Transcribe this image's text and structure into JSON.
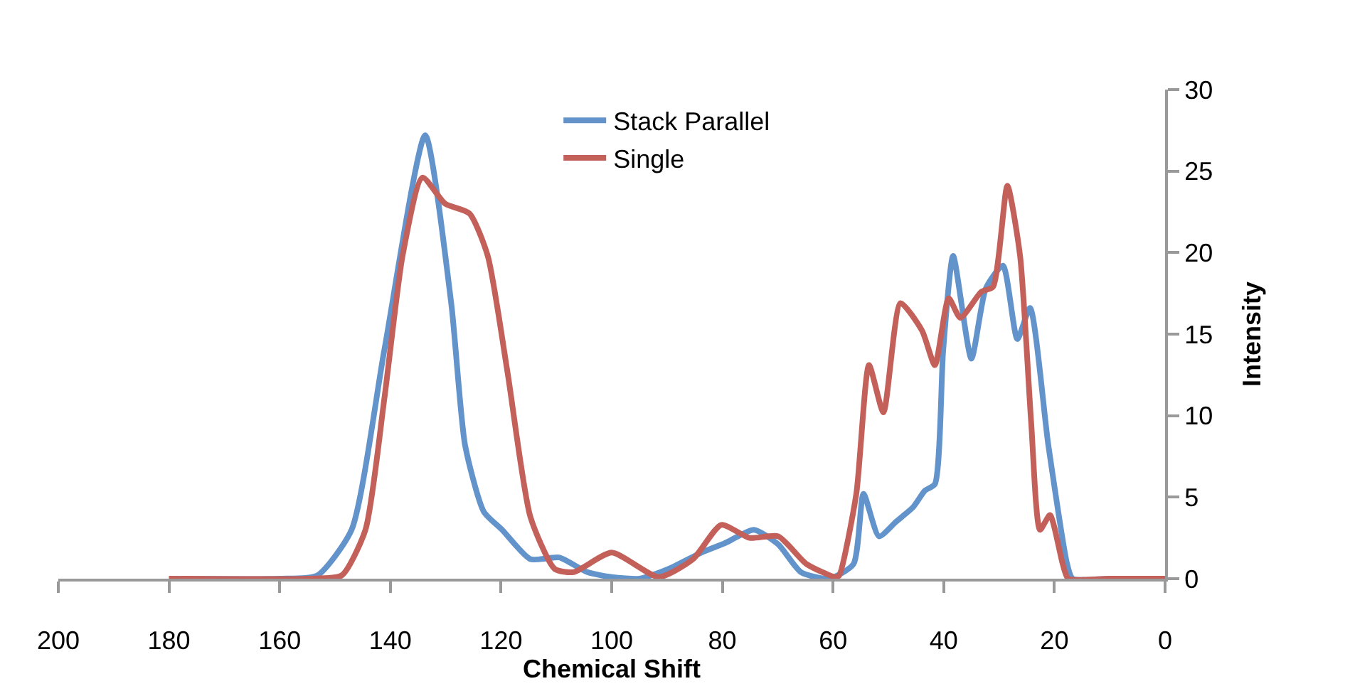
{
  "chart_data": {
    "type": "line",
    "xlabel": "Chemical Shift",
    "ylabel": "Intensity",
    "xlim": [
      200,
      0
    ],
    "xticks": [
      200,
      180,
      160,
      140,
      120,
      100,
      80,
      60,
      40,
      20,
      0
    ],
    "ylim": [
      0,
      30
    ],
    "yticks": [
      0,
      5,
      10,
      15,
      20,
      25,
      30
    ],
    "grid": false,
    "legend": "top",
    "marker": "none",
    "line_style": "solid",
    "series": [
      {
        "name": "Stack Parallel",
        "color": "#6393cb",
        "x": [
          180,
          160,
          153.2,
          147,
          141.1,
          133.7,
          129,
          126.5,
          123.1,
          119.8,
          114.7,
          109.5,
          104.4,
          100,
          95,
          89.7,
          83.8,
          79.4,
          74.3,
          69.9,
          65.8,
          60.7,
          56.3,
          54.5,
          51.7,
          48.6,
          45.5,
          43.4,
          41.6,
          40.1,
          38.3,
          35,
          32.4,
          29.3,
          26.7,
          24.4,
          21.1,
          17.7,
          16.7,
          10,
          0
        ],
        "values": [
          0,
          0,
          0.2,
          3,
          14,
          27.2,
          16.9,
          8.2,
          4.1,
          3,
          1.2,
          1.3,
          0.4,
          0.1,
          0,
          0.6,
          1.6,
          2.2,
          3,
          2.1,
          0.4,
          0,
          0.9,
          5.2,
          2.6,
          3.5,
          4.4,
          5.4,
          5.8,
          14,
          19.8,
          13.5,
          17.8,
          19.2,
          14.7,
          16.6,
          8.2,
          0.9,
          0,
          0,
          0
        ]
      },
      {
        "name": "Single",
        "color": "#c4605a",
        "x": [
          180,
          155,
          148.8,
          144.5,
          141.1,
          137.8,
          134.2,
          130.1,
          125.7,
          122.4,
          118.8,
          114.7,
          110.3,
          106.9,
          100,
          91.5,
          85.3,
          80.2,
          75.1,
          69.9,
          64.8,
          59.6,
          58.9,
          55.8,
          53.5,
          50.9,
          47.8,
          43.9,
          41.6,
          39.1,
          37,
          33.2,
          31.1,
          28.5,
          26.2,
          24.2,
          22.6,
          20.8,
          18.5,
          17.5,
          10,
          0
        ],
        "values": [
          0,
          0,
          0.2,
          3,
          11,
          19.8,
          24.6,
          23,
          22.4,
          19.8,
          12.6,
          3.8,
          0.6,
          0.4,
          1.6,
          0.1,
          1.2,
          3.3,
          2.5,
          2.6,
          0.9,
          0.1,
          0.2,
          5.2,
          13.1,
          10.2,
          16.9,
          15.2,
          13.1,
          17.2,
          16,
          17.6,
          17.9,
          24.1,
          19.8,
          9.6,
          3,
          3.9,
          0.9,
          0,
          0,
          0
        ]
      }
    ]
  }
}
